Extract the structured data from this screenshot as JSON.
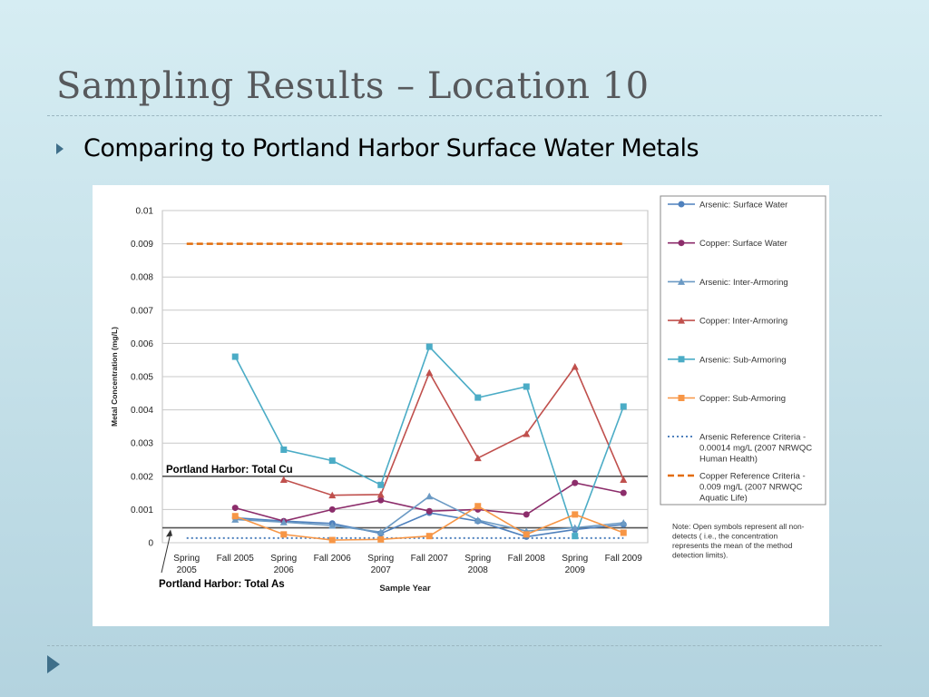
{
  "slide": {
    "title": "Sampling Results – Location 10",
    "bullet": "Comparing to Portland Harbor Surface Water Metals"
  },
  "chart_data": {
    "type": "line",
    "xlabel": "Sample Year",
    "ylabel": "Metal Concentration (mg/L)",
    "ylim": [
      0,
      0.01
    ],
    "yticks": [
      0,
      0.001,
      0.002,
      0.003,
      0.004,
      0.005,
      0.006,
      0.007,
      0.008,
      0.009,
      0.01
    ],
    "ytick_labels": [
      "0",
      "0.001",
      "0.002",
      "0.003",
      "0.004",
      "0.005",
      "0.006",
      "0.007",
      "0.008",
      "0.009",
      "0.01"
    ],
    "categories": [
      [
        "Spring",
        "2005"
      ],
      [
        "Fall 2005"
      ],
      [
        "Spring",
        "2006"
      ],
      [
        "Fall 2006"
      ],
      [
        "Spring",
        "2007"
      ],
      [
        "Fall 2007"
      ],
      [
        "Spring",
        "2008"
      ],
      [
        "Fall 2008"
      ],
      [
        "Spring",
        "2009"
      ],
      [
        "Fall 2009"
      ]
    ],
    "grid": true,
    "legend_position": "right",
    "series": [
      {
        "name": "Arsenic: Surface Water",
        "color": "#4f81bd",
        "marker": "circle",
        "values": [
          null,
          0.00075,
          0.00065,
          0.00058,
          0.00028,
          0.0009,
          0.00065,
          0.00018,
          0.0004,
          0.00055
        ]
      },
      {
        "name": "Copper: Surface Water",
        "color": "#8c2d6b",
        "marker": "circle",
        "values": [
          null,
          0.00105,
          0.00065,
          0.001,
          0.00128,
          0.00095,
          0.001,
          0.00085,
          0.0018,
          0.0015
        ]
      },
      {
        "name": "Arsenic: Inter-Armoring",
        "color": "#6b9ac4",
        "marker": "triangle",
        "values": [
          null,
          0.0007,
          0.00062,
          0.00052,
          0.00032,
          0.0014,
          0.00068,
          0.00035,
          0.00045,
          0.0006
        ]
      },
      {
        "name": "Copper: Inter-Armoring",
        "color": "#c0504d",
        "marker": "triangle",
        "values": [
          null,
          null,
          0.0019,
          0.00143,
          0.00145,
          0.00512,
          0.00255,
          0.00328,
          0.0053,
          0.0019
        ]
      },
      {
        "name": "Arsenic: Sub-Armoring",
        "color": "#4bacc6",
        "marker": "square",
        "values": [
          null,
          0.0056,
          0.0028,
          0.00247,
          0.00174,
          0.0059,
          0.00437,
          0.0047,
          0.0002,
          0.0041
        ]
      },
      {
        "name": "Copper: Sub-Armoring",
        "color": "#f79646",
        "marker": "square",
        "values": [
          null,
          0.0008,
          0.00025,
          8e-05,
          0.0001,
          0.0002,
          0.0011,
          0.00025,
          0.00085,
          0.0003
        ]
      }
    ],
    "reference_lines": [
      {
        "name": "Arsenic Reference Criteria - 0.00014 mg/L (2007 NRWQC Human Health)",
        "name_lines": [
          "Arsenic Reference Criteria -",
          "0.00014 mg/L (2007 NRWQC",
          "Human Health)"
        ],
        "value": 0.00014,
        "color": "#4f81bd",
        "style": "dotted"
      },
      {
        "name": "Copper Reference Criteria - 0.009 mg/L (2007 NRWQC Aquatic Life)",
        "name_lines": [
          "Copper Reference Criteria -",
          "0.009 mg/L (2007 NRWQC",
          "Aquatic Life)"
        ],
        "value": 0.009,
        "color": "#e36c09",
        "style": "dashed"
      }
    ],
    "harbor_lines": [
      {
        "label": "Portland Harbor: Total Cu",
        "value": 0.002
      },
      {
        "label": "Portland Harbor: Total As",
        "value": 0.00045
      }
    ],
    "note": [
      "Note: Open symbols represent all non-",
      "detects ( i.e., the concentration",
      "represents the mean of the method",
      "detection limits)."
    ]
  }
}
